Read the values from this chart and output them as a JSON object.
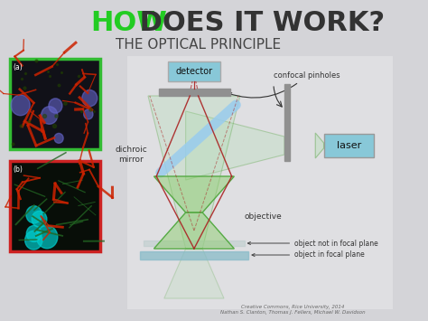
{
  "bg_color": "#d4d4d8",
  "title_how": "HOW",
  "title_how_color": "#22cc22",
  "title_rest": " DOES IT WORK?",
  "title_rest_color": "#333333",
  "subtitle": "THE OPTICAL PRINCIPLE",
  "subtitle_color": "#444444",
  "credit": "Creative Commons, Rice University, 2014\nNathan S. Clanton, Thomas J. Fellers, Michael W. Davidson",
  "credit_color": "#666666",
  "label_detector": "detector",
  "label_confocal": "confocal pinholes",
  "label_dichroic": "dichroic\nmirror",
  "label_objective": "objective",
  "label_laser": "laser",
  "label_not_focal": "object not in focal plane",
  "label_focal": "object in focal plane",
  "blue_box": "#88c8d8",
  "mirror_color": "#99ccee",
  "gray_bar": "#909090",
  "sample_box": "#88bbc8",
  "red_line": "#aa2222",
  "green_fill": "#aaddaa",
  "green_edge": "#66aa55"
}
